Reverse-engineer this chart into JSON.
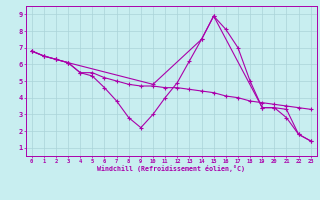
{
  "xlabel": "Windchill (Refroidissement éolien,°C)",
  "background_color": "#c8eef0",
  "grid_color": "#aad4d8",
  "line_color": "#aa00aa",
  "xlim": [
    -0.5,
    23.5
  ],
  "ylim": [
    0.5,
    9.5
  ],
  "xticks": [
    0,
    1,
    2,
    3,
    4,
    5,
    6,
    7,
    8,
    9,
    10,
    11,
    12,
    13,
    14,
    15,
    16,
    17,
    18,
    19,
    20,
    21,
    22,
    23
  ],
  "yticks": [
    1,
    2,
    3,
    4,
    5,
    6,
    7,
    8,
    9
  ],
  "line1_x": [
    0,
    1,
    2,
    3,
    4,
    5,
    6,
    7,
    8,
    9,
    10,
    11,
    12,
    13,
    14,
    15,
    16,
    17,
    18,
    19,
    20,
    21,
    22,
    23
  ],
  "line1_y": [
    6.8,
    6.5,
    6.3,
    6.1,
    5.5,
    5.5,
    5.2,
    5.0,
    4.8,
    4.7,
    4.7,
    4.6,
    4.6,
    4.5,
    4.4,
    4.3,
    4.1,
    4.0,
    3.8,
    3.7,
    3.6,
    3.5,
    3.4,
    3.3
  ],
  "line2_x": [
    0,
    1,
    2,
    3,
    4,
    5,
    6,
    7,
    8,
    9,
    10,
    11,
    12,
    13,
    14,
    15,
    16,
    17,
    18,
    19,
    20,
    21,
    22,
    23
  ],
  "line2_y": [
    6.8,
    6.5,
    6.3,
    6.1,
    5.5,
    5.3,
    4.6,
    3.8,
    2.8,
    2.2,
    3.0,
    4.0,
    4.9,
    6.2,
    7.5,
    8.9,
    8.1,
    7.0,
    5.0,
    3.4,
    3.4,
    2.8,
    1.8,
    1.4
  ],
  "line3_x": [
    0,
    1,
    2,
    3,
    10,
    14,
    15,
    19,
    20,
    21,
    22,
    23
  ],
  "line3_y": [
    6.8,
    6.5,
    6.3,
    6.1,
    4.8,
    7.5,
    8.9,
    3.4,
    3.4,
    3.3,
    1.8,
    1.4
  ]
}
